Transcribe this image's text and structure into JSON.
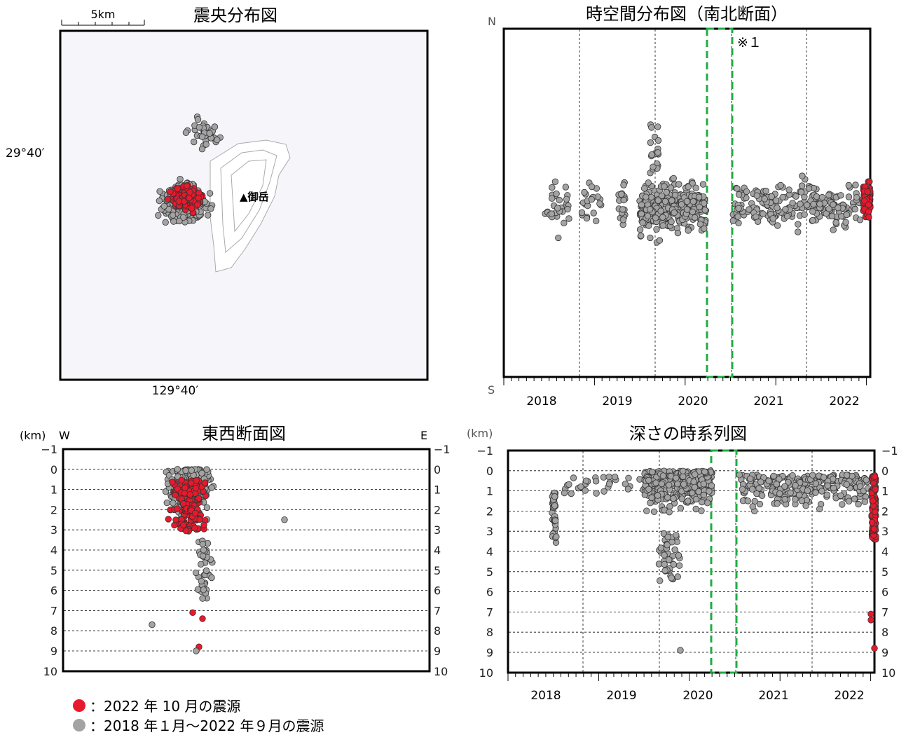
{
  "map_panel": {
    "title": "震央分布図",
    "scale_label": "5km",
    "lat_label": "29°40′",
    "lon_label": "129°40′",
    "summit_label": "▲御岳"
  },
  "ns_panel": {
    "title": "時空間分布図（南北断面）",
    "north_label": "N",
    "south_label": "S",
    "note_label": "※１",
    "years": [
      "2018",
      "2019",
      "2020",
      "2021",
      "2022"
    ]
  },
  "ew_panel": {
    "title": "東西断面図",
    "unit_label": "(km)",
    "west_label": "W",
    "east_label": "E",
    "depth_ticks": [
      "−1",
      "0",
      "1",
      "2",
      "3",
      "4",
      "5",
      "6",
      "7",
      "8",
      "9",
      "10"
    ]
  },
  "depth_panel": {
    "title": "深さの時系列図",
    "unit_label": "(km)",
    "depth_ticks": [
      "−1",
      "0",
      "1",
      "2",
      "3",
      "4",
      "5",
      "6",
      "7",
      "8",
      "9",
      "10"
    ],
    "years": [
      "2018",
      "2019",
      "2020",
      "2021",
      "2022"
    ]
  },
  "legend": {
    "current": "：2022 年 10 月の震源",
    "past": "：2018 年１月～2022 年９月の震源"
  },
  "colors": {
    "current": "#e8192c",
    "past": "#a3a3a3",
    "gap_box": "#22aa44"
  },
  "chart_data": [
    {
      "type": "scatter",
      "name_ref": "map_panel",
      "title": "震央分布図",
      "note": "epicenter distribution; gray = 2018-01 to 2022-09, red = 2022-10"
    },
    {
      "type": "scatter",
      "name_ref": "ns_panel",
      "title": "時空間分布図（南北断面）",
      "x": [
        "2018",
        "2019",
        "2020",
        "2021",
        "2022"
      ],
      "gap_period": [
        "2020 mid",
        "2020 end"
      ]
    },
    {
      "type": "scatter",
      "name_ref": "ew_panel",
      "title": "東西断面図",
      "ylim": [
        -1,
        10
      ],
      "ylabel": "(km)"
    },
    {
      "type": "scatter",
      "name_ref": "depth_panel",
      "title": "深さの時系列図",
      "ylim": [
        -1,
        10
      ],
      "ylabel": "(km)",
      "x": [
        "2018",
        "2019",
        "2020",
        "2021",
        "2022"
      ]
    }
  ]
}
